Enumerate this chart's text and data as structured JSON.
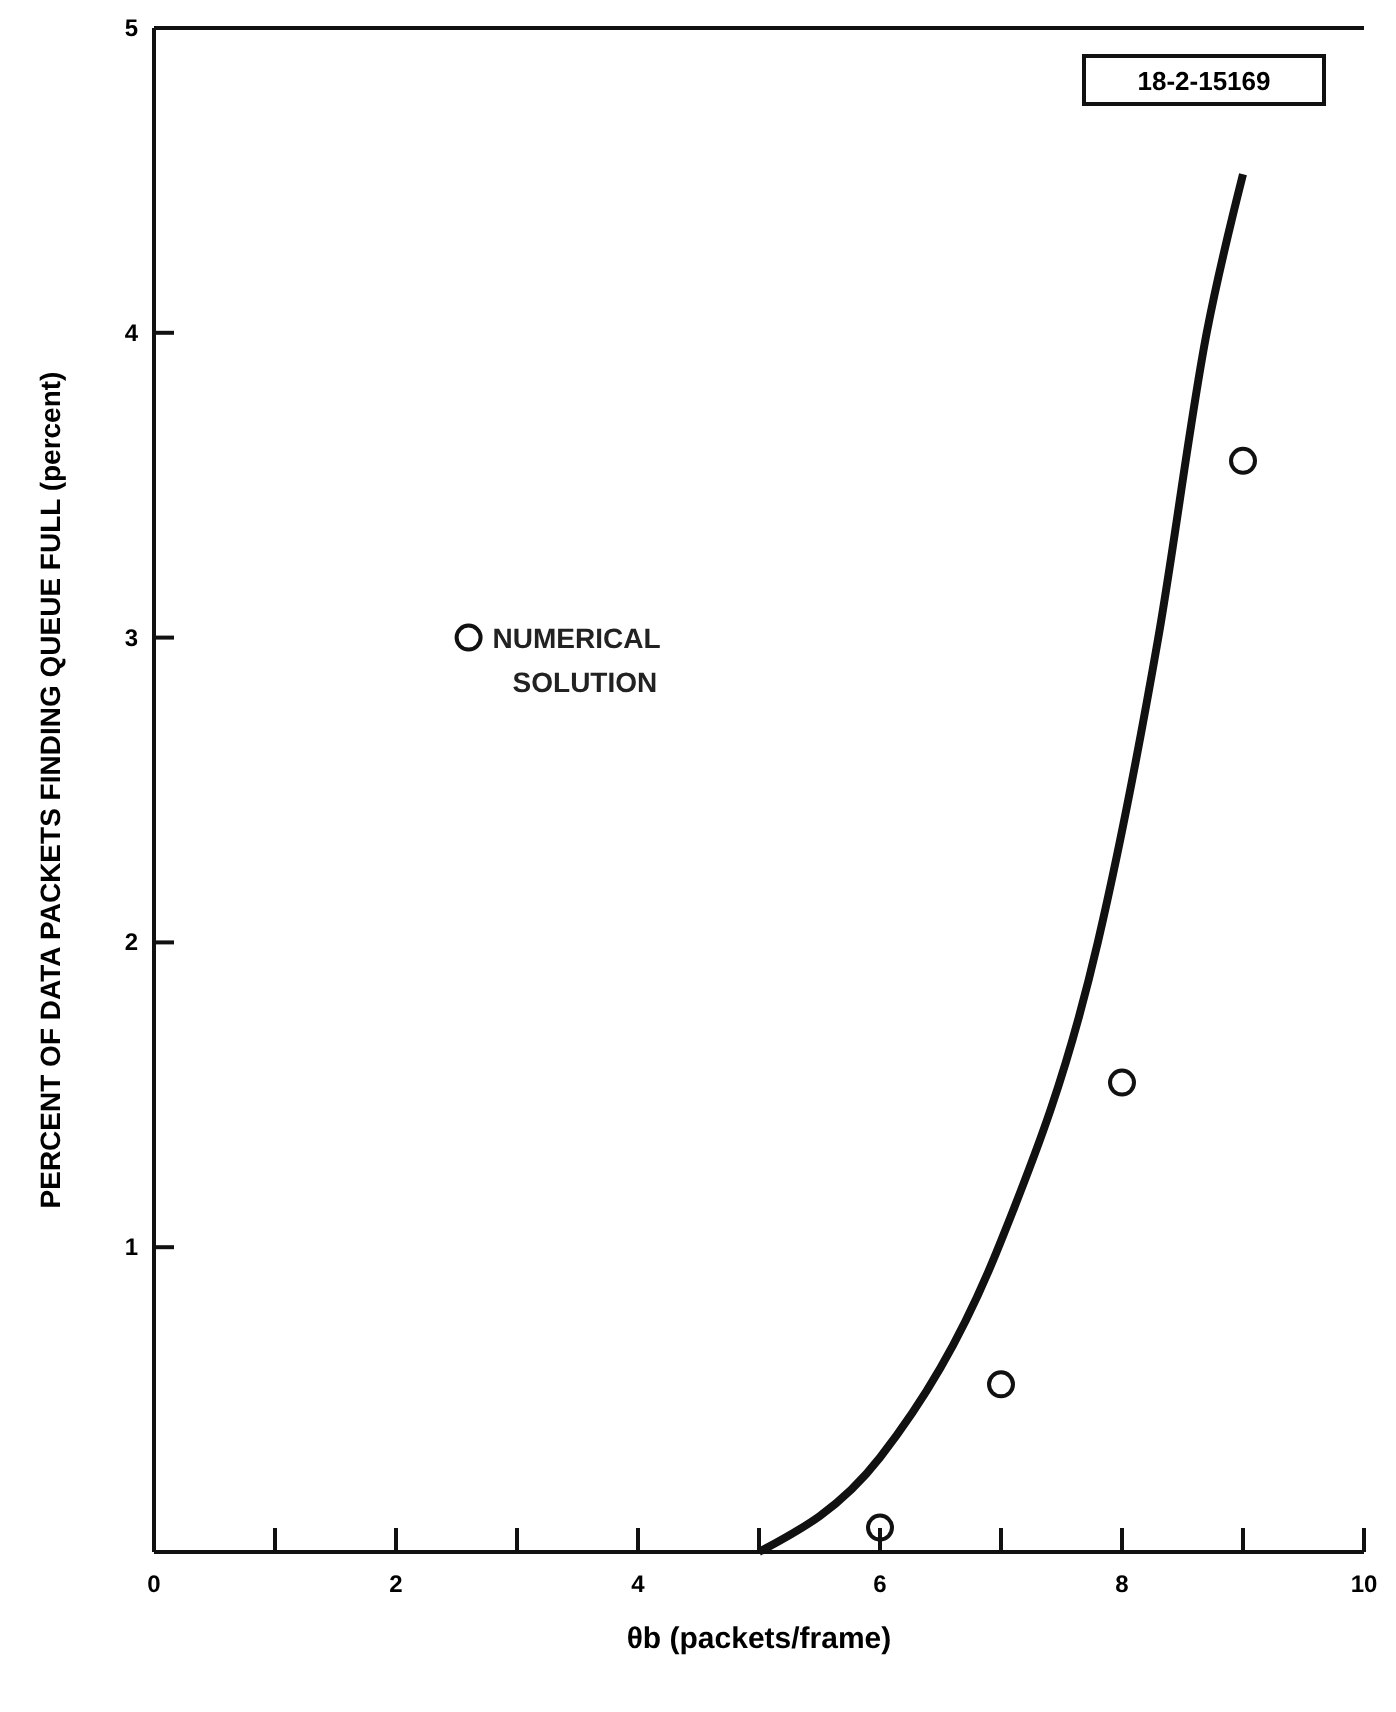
{
  "chart_data": {
    "type": "line",
    "xlabel": "θb (packets/frame)",
    "ylabel": "PERCENT OF DATA PACKETS FINDING QUEUE FULL (percent)",
    "annotations": [
      "18-2-15169"
    ],
    "xlim": [
      0,
      10
    ],
    "ylim": [
      0,
      5
    ],
    "xticks": [
      0,
      {
        "value": 1,
        "label": null
      },
      2,
      {
        "value": 3,
        "label": null
      },
      4,
      {
        "value": 5,
        "label": null
      },
      6,
      {
        "value": 7,
        "label": null
      },
      8,
      {
        "value": 9,
        "label": null
      },
      10
    ],
    "yticks": [
      {
        "value": 0,
        "label": null
      },
      1,
      2,
      3,
      4,
      5
    ],
    "grid": false,
    "legend": "left",
    "series": [
      {
        "color": "#111111",
        "marker": "none",
        "line_style": "solid",
        "x": [
          5,
          6,
          7,
          7.8,
          8.3,
          8.7,
          9
        ],
        "values": [
          0,
          0.31,
          1.02,
          2.0,
          3.0,
          4.0,
          4.52
        ]
      },
      {
        "type": "scatter",
        "name": "NUMERICAL SOLUTION",
        "color": "#111111",
        "marker": "circle",
        "x": [
          6,
          7,
          8,
          9
        ],
        "values": [
          0.08,
          0.55,
          1.54,
          3.58
        ]
      }
    ]
  }
}
